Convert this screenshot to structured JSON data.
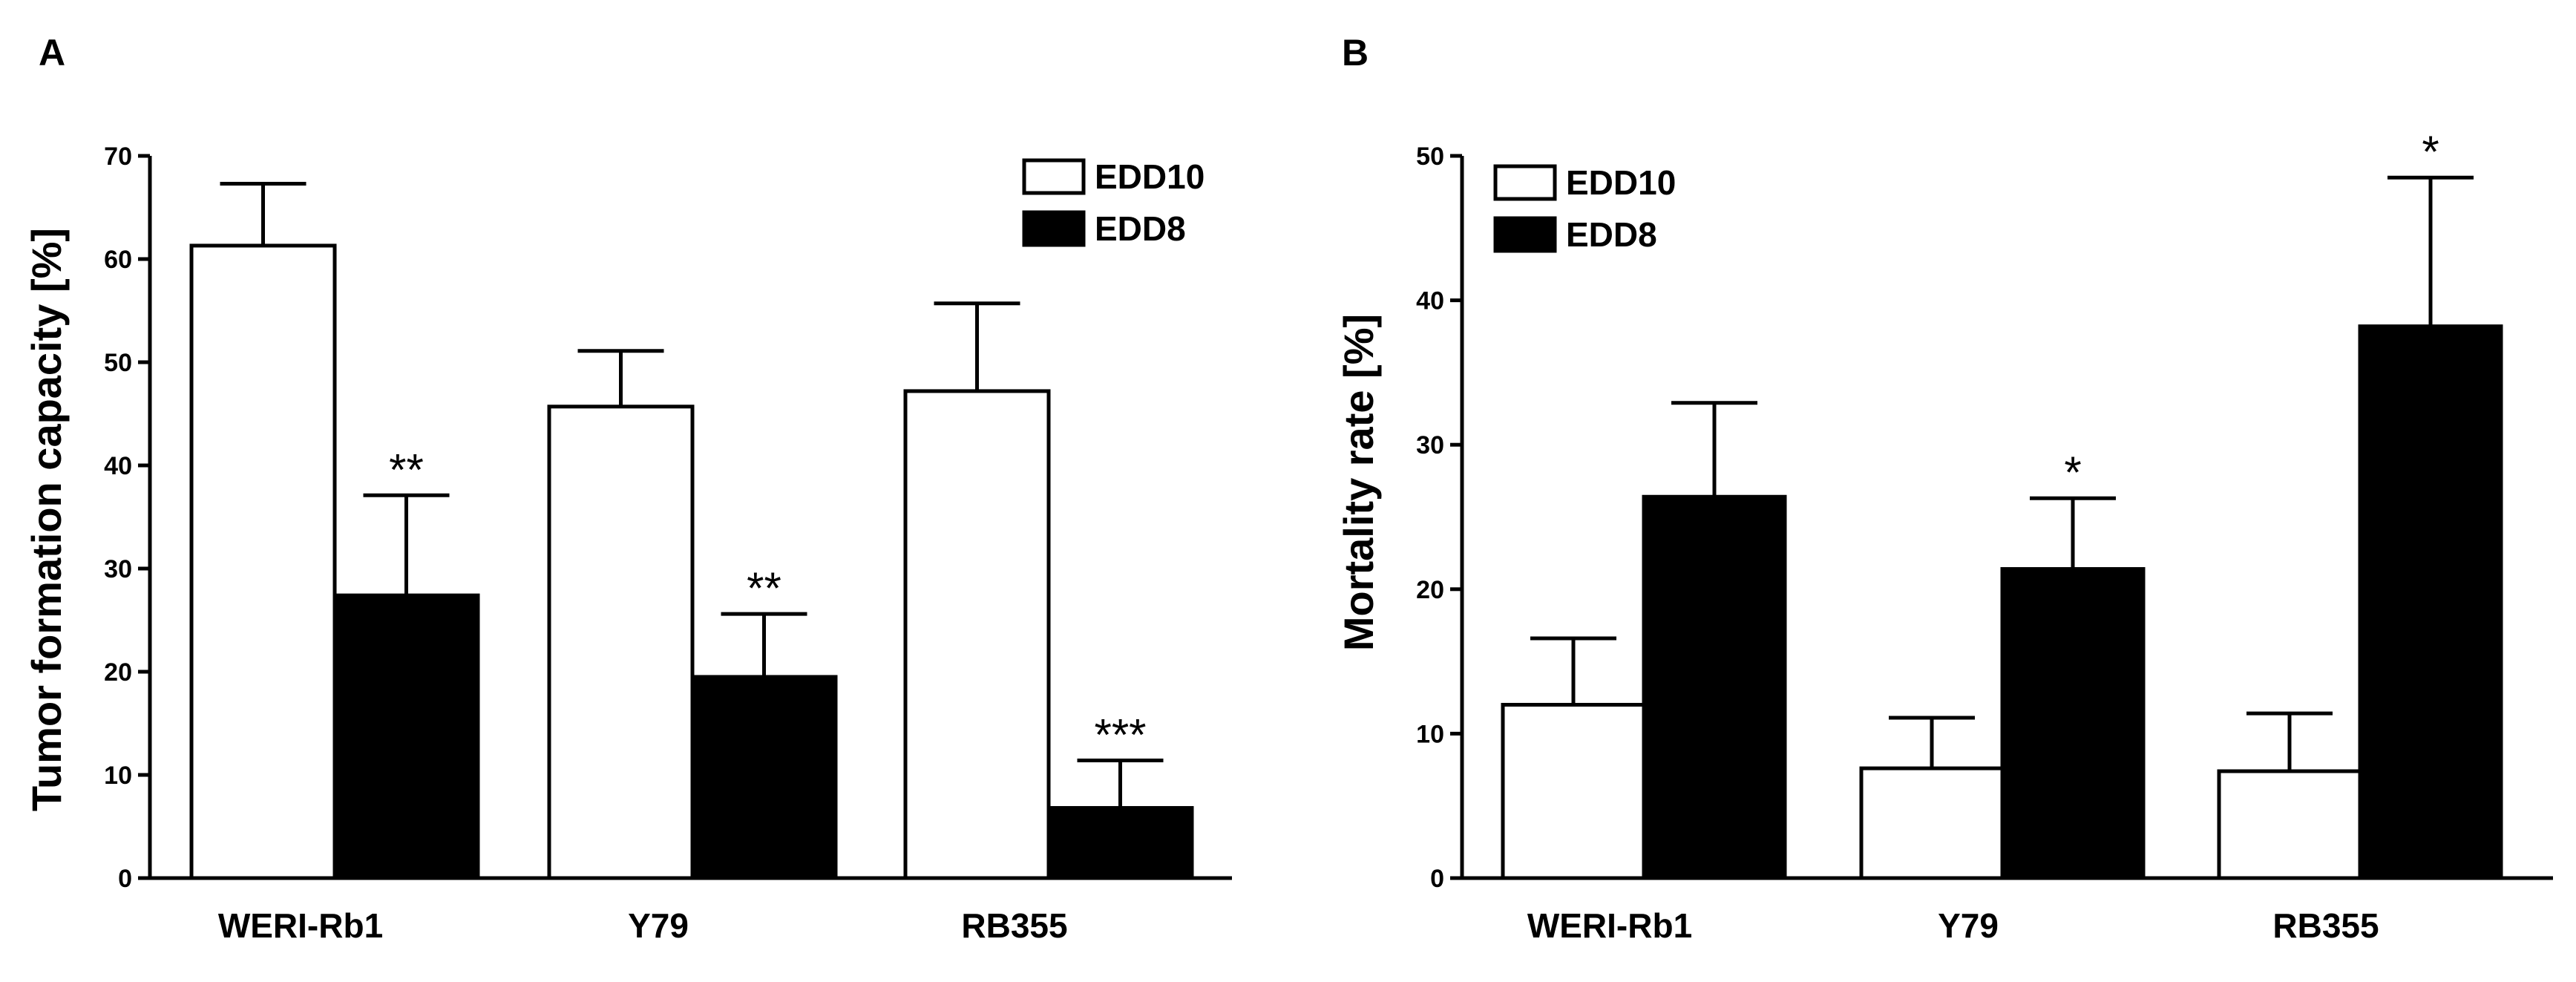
{
  "colors": {
    "edd10_fill": "#ffffff",
    "edd8_fill": "#000000",
    "stroke": "#000000",
    "background": "#ffffff"
  },
  "chart_data": [
    {
      "panel": "A",
      "type": "bar",
      "ylabel": "Tumor formation capacity [%]",
      "xlabel": "",
      "ylim": [
        0,
        70
      ],
      "yticks": [
        0,
        10,
        20,
        30,
        40,
        50,
        60,
        70
      ],
      "categories": [
        "WERI-Rb1",
        "Y79",
        "RB355"
      ],
      "legend_position": "top-right",
      "series": [
        {
          "name": "EDD10",
          "color": "#ffffff",
          "values": [
            61.3,
            45.7,
            47.2
          ],
          "errors": [
            6.0,
            5.4,
            8.5
          ],
          "significance": [
            "",
            "",
            ""
          ]
        },
        {
          "name": "EDD8",
          "color": "#000000",
          "values": [
            27.4,
            19.5,
            6.8
          ],
          "errors": [
            9.7,
            6.1,
            4.6
          ],
          "significance": [
            "**",
            "**",
            "***"
          ]
        }
      ]
    },
    {
      "panel": "B",
      "type": "bar",
      "ylabel": "Mortality rate [%]",
      "xlabel": "",
      "ylim": [
        0,
        50
      ],
      "yticks": [
        0,
        10,
        20,
        30,
        40,
        50
      ],
      "categories": [
        "WERI-Rb1",
        "Y79",
        "RB355"
      ],
      "legend_position": "top-left",
      "series": [
        {
          "name": "EDD10",
          "color": "#ffffff",
          "values": [
            12.0,
            7.6,
            7.4
          ],
          "errors": [
            4.6,
            3.5,
            4.0
          ],
          "significance": [
            "",
            "",
            ""
          ]
        },
        {
          "name": "EDD8",
          "color": "#000000",
          "values": [
            26.4,
            21.4,
            38.2
          ],
          "errors": [
            6.5,
            4.9,
            10.3
          ],
          "significance": [
            "",
            "*",
            "*"
          ]
        }
      ]
    }
  ]
}
